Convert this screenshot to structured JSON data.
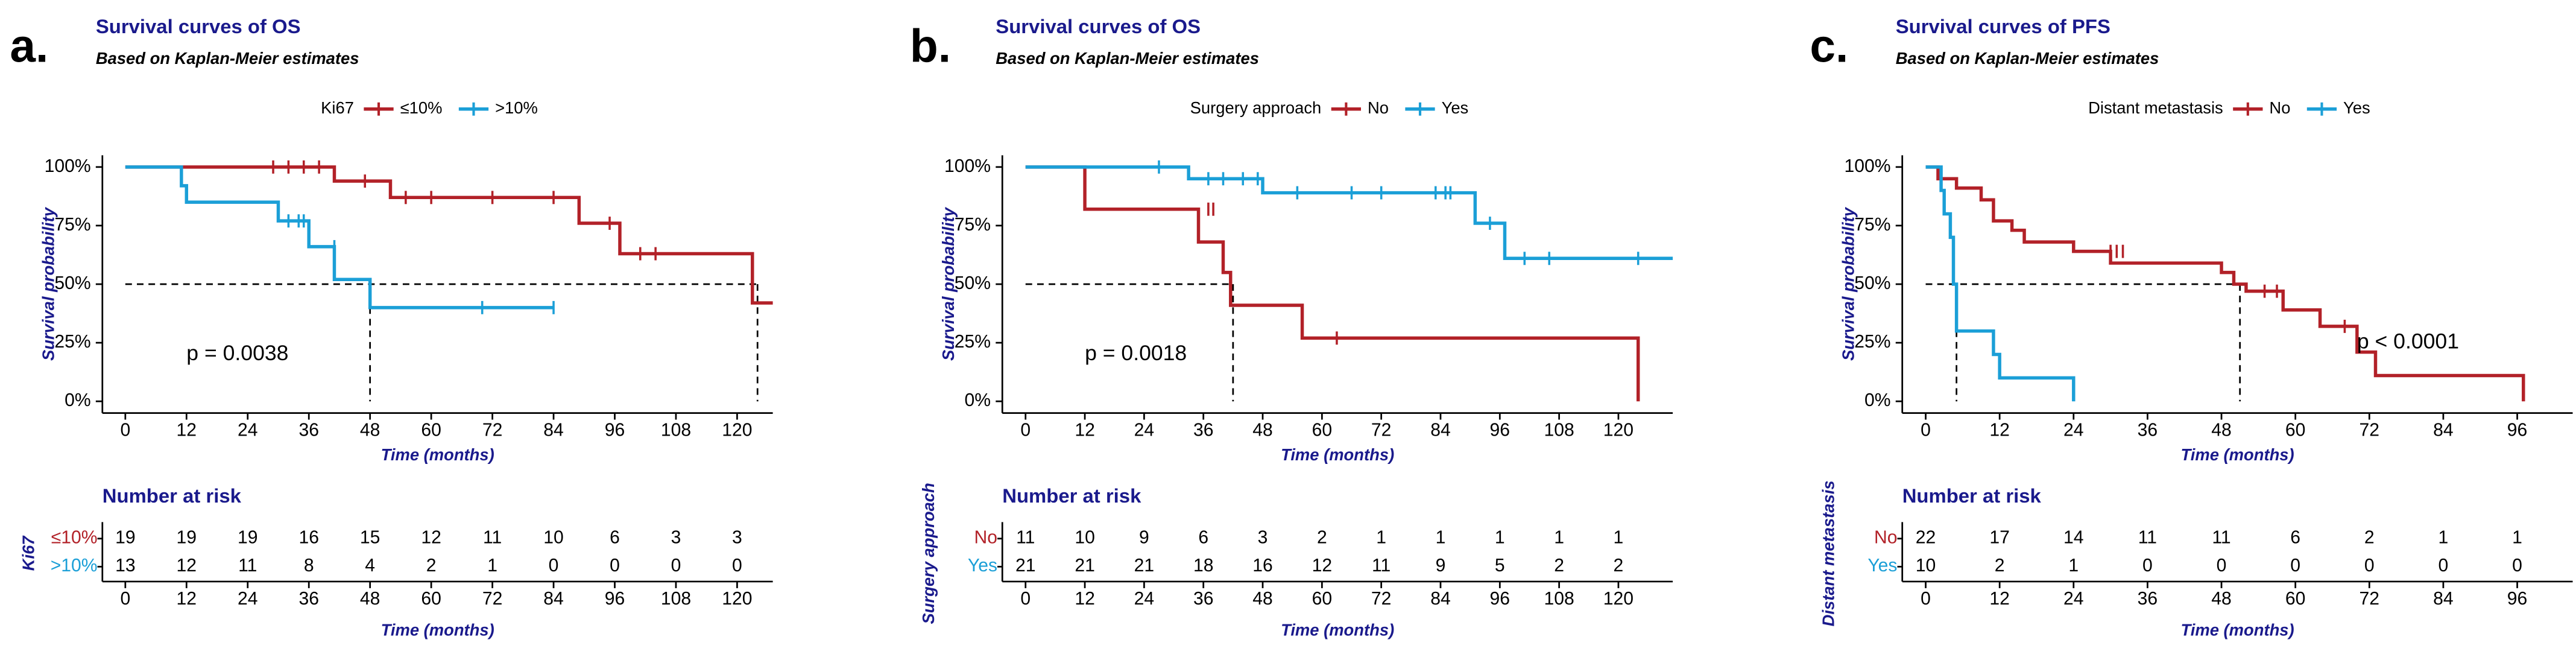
{
  "chart_data": [
    {
      "type": "line",
      "panel_label": "a.",
      "title": "Survival curves of OS",
      "subtitle": "Based on Kaplan-Meier estimates",
      "legend_title": "Ki67",
      "xlabel": "Time (months)",
      "ylabel": "Survival probability",
      "annotation": "p = 0.0038",
      "xlim": [
        -4.5,
        127
      ],
      "xticks": [
        0,
        12,
        24,
        36,
        48,
        60,
        72,
        84,
        96,
        108,
        120
      ],
      "ylim": [
        -5,
        105
      ],
      "yticks": [
        {
          "value": 0,
          "label": "0%"
        },
        {
          "value": 25,
          "label": "25%"
        },
        {
          "value": 50,
          "label": "50%"
        },
        {
          "value": 75,
          "label": "75%"
        },
        {
          "value": 100,
          "label": "100%"
        }
      ],
      "medians": [
        48,
        124
      ],
      "series": [
        {
          "name": "≤10%",
          "color": "#b22128",
          "x": [
            0,
            41,
            41,
            52,
            52,
            89,
            89,
            97,
            97,
            123,
            123,
            127
          ],
          "values": [
            100,
            100,
            94,
            94,
            87,
            87,
            76,
            76,
            63,
            63,
            42,
            42
          ],
          "censored_x": [
            29,
            32,
            35,
            38,
            47,
            55,
            60,
            72,
            84,
            95,
            101,
            104
          ],
          "censored_values": [
            100,
            100,
            100,
            100,
            94,
            87,
            87,
            87,
            87,
            76,
            63,
            63
          ]
        },
        {
          "name": ">10%",
          "color": "#1b9fd7",
          "x": [
            0,
            11,
            11,
            12,
            12,
            30,
            30,
            36,
            36,
            41,
            41,
            48,
            48,
            84
          ],
          "values": [
            100,
            100,
            92,
            92,
            85,
            85,
            77,
            77,
            66,
            66,
            52,
            52,
            40,
            40
          ],
          "censored_x": [
            32,
            34,
            35,
            41,
            70,
            84
          ],
          "censored_values": [
            77,
            77,
            77,
            66,
            40,
            40
          ]
        }
      ],
      "risk_table": {
        "title": "Number at risk",
        "ylabel": "Ki67",
        "xlabel": "Time (months)",
        "xticks": [
          0,
          12,
          24,
          36,
          48,
          60,
          72,
          84,
          96,
          108,
          120
        ],
        "rows": [
          [
            19,
            19,
            19,
            16,
            15,
            12,
            11,
            10,
            6,
            3,
            3
          ],
          [
            13,
            12,
            11,
            8,
            4,
            2,
            1,
            0,
            0,
            0,
            0
          ]
        ]
      }
    },
    {
      "type": "line",
      "panel_label": "b.",
      "title": "Survival curves of OS",
      "subtitle": "Based on Kaplan-Meier estimates",
      "legend_title": "Surgery approach",
      "xlabel": "Time (months)",
      "ylabel": "Survival probability",
      "annotation": "p = 0.0018",
      "xlim": [
        -4.7,
        131
      ],
      "xticks": [
        0,
        12,
        24,
        36,
        48,
        60,
        72,
        84,
        96,
        108,
        120
      ],
      "ylim": [
        -5,
        105
      ],
      "yticks": [
        {
          "value": 0,
          "label": "0%"
        },
        {
          "value": 25,
          "label": "25%"
        },
        {
          "value": 50,
          "label": "50%"
        },
        {
          "value": 75,
          "label": "75%"
        },
        {
          "value": 100,
          "label": "100%"
        }
      ],
      "medians": [
        42
      ],
      "series": [
        {
          "name": "No",
          "color": "#b22128",
          "x": [
            0,
            12,
            12,
            35,
            35,
            40,
            40,
            41.5,
            41.5,
            56,
            56,
            124,
            124
          ],
          "values": [
            100,
            100,
            82,
            82,
            68,
            68,
            55,
            55,
            41,
            41,
            27,
            27,
            0
          ],
          "censored_x": [
            37,
            38,
            63
          ],
          "censored_values": [
            82,
            82,
            27
          ]
        },
        {
          "name": "Yes",
          "color": "#1b9fd7",
          "x": [
            0,
            33,
            33,
            48,
            48,
            91,
            91,
            97,
            97,
            131
          ],
          "values": [
            100,
            100,
            95,
            95,
            89,
            89,
            76,
            76,
            61,
            61
          ],
          "censored_x": [
            27,
            37,
            40,
            44,
            47,
            55,
            66,
            72,
            83,
            85,
            86,
            94,
            101,
            106,
            124
          ],
          "censored_values": [
            100,
            95,
            95,
            95,
            95,
            89,
            89,
            89,
            89,
            89,
            89,
            76,
            61,
            61,
            61
          ]
        }
      ],
      "risk_table": {
        "title": "Number at risk",
        "ylabel": "Surgery approach",
        "xlabel": "Time (months)",
        "xticks": [
          0,
          12,
          24,
          36,
          48,
          60,
          72,
          84,
          96,
          108,
          120
        ],
        "rows": [
          [
            11,
            10,
            9,
            6,
            3,
            2,
            1,
            1,
            1,
            1,
            1
          ],
          [
            21,
            21,
            21,
            18,
            16,
            12,
            11,
            9,
            5,
            2,
            2
          ]
        ]
      }
    },
    {
      "type": "line",
      "panel_label": "c.",
      "title": "Survival curves of PFS",
      "subtitle": "Based on Kaplan-Meier estimates",
      "legend_title": "Distant metastasis",
      "xlabel": "Time (months)",
      "ylabel": "Survival probability",
      "annotation": "p < 0.0001",
      "xlim": [
        -3.8,
        105
      ],
      "xticks": [
        0,
        12,
        24,
        36,
        48,
        60,
        72,
        84,
        96
      ],
      "ylim": [
        -5,
        105
      ],
      "yticks": [
        {
          "value": 0,
          "label": "0%"
        },
        {
          "value": 25,
          "label": "25%"
        },
        {
          "value": 50,
          "label": "50%"
        },
        {
          "value": 75,
          "label": "75%"
        },
        {
          "value": 100,
          "label": "100%"
        }
      ],
      "medians": [
        5,
        51
      ],
      "series": [
        {
          "name": "No",
          "color": "#b22128",
          "x": [
            0,
            2,
            2,
            5,
            5,
            9,
            9,
            11,
            11,
            14,
            14,
            16,
            16,
            24,
            24,
            30,
            30,
            48,
            48,
            50,
            50,
            52,
            52,
            58,
            58,
            64,
            64,
            70,
            70,
            73,
            73,
            97,
            97
          ],
          "values": [
            100,
            100,
            95,
            95,
            91,
            91,
            86,
            86,
            77,
            77,
            73,
            73,
            68,
            68,
            64,
            64,
            59,
            59,
            55,
            55,
            50,
            50,
            47,
            47,
            39,
            39,
            32,
            32,
            21,
            21,
            11,
            11,
            0
          ],
          "censored_x": [
            30,
            31,
            32,
            55,
            57,
            68
          ],
          "censored_values": [
            64,
            64,
            64,
            47,
            47,
            32
          ]
        },
        {
          "name": "Yes",
          "color": "#1b9fd7",
          "x": [
            0,
            2.5,
            2.5,
            3,
            3,
            4,
            4,
            4.5,
            4.5,
            5,
            5,
            11,
            11,
            12,
            12,
            24,
            24
          ],
          "values": [
            100,
            100,
            90,
            90,
            80,
            80,
            70,
            70,
            50,
            50,
            30,
            30,
            20,
            20,
            10,
            10,
            0
          ]
        }
      ],
      "risk_table": {
        "title": "Number at risk",
        "ylabel": "Distant metastasis",
        "xlabel": "Time (months)",
        "xticks": [
          0,
          12,
          24,
          36,
          48,
          60,
          72,
          84,
          96
        ],
        "rows": [
          [
            22,
            17,
            14,
            11,
            11,
            6,
            2,
            1,
            1
          ],
          [
            10,
            2,
            1,
            0,
            0,
            0,
            0,
            0,
            0
          ]
        ]
      }
    }
  ]
}
